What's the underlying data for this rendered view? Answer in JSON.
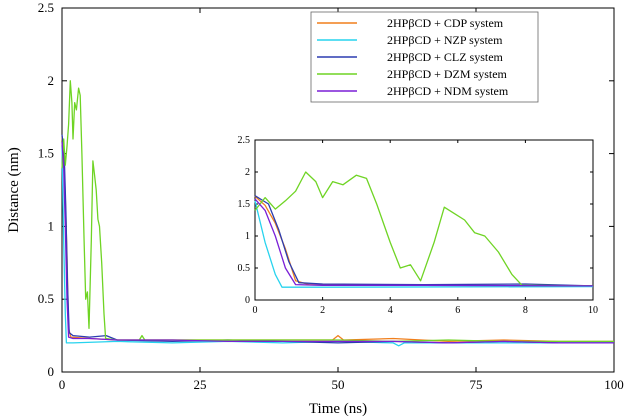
{
  "chart_data": {
    "type": "line",
    "title": "",
    "xlabel": "Time (ns)",
    "ylabel": "Distance (nm)",
    "xlim": [
      0,
      100
    ],
    "ylim": [
      0,
      2.5
    ],
    "xticks": [
      0,
      25,
      50,
      75,
      100
    ],
    "yticks": [
      0,
      0.5,
      1,
      1.5,
      2,
      2.5
    ],
    "ytick_labels": [
      "0",
      "0.5",
      "1",
      "1.5",
      "2",
      "2.5"
    ],
    "legend_position": "top-right",
    "series": [
      {
        "name": "2HPβCD + CDP system",
        "color": "#f07f1c",
        "points": [
          [
            0,
            1.62
          ],
          [
            0.3,
            1.48
          ],
          [
            0.6,
            1.2
          ],
          [
            0.9,
            0.8
          ],
          [
            1.2,
            0.3
          ],
          [
            1.6,
            0.24
          ],
          [
            5,
            0.23
          ],
          [
            10,
            0.22
          ],
          [
            20,
            0.22
          ],
          [
            30,
            0.22
          ],
          [
            40,
            0.22
          ],
          [
            49,
            0.22
          ],
          [
            50,
            0.25
          ],
          [
            51,
            0.22
          ],
          [
            60,
            0.23
          ],
          [
            70,
            0.21
          ],
          [
            80,
            0.22
          ],
          [
            90,
            0.21
          ],
          [
            100,
            0.21
          ]
        ]
      },
      {
        "name": "2HPβCD + NZP system",
        "color": "#27d3ee",
        "points": [
          [
            0,
            1.55
          ],
          [
            0.3,
            0.9
          ],
          [
            0.6,
            0.4
          ],
          [
            0.8,
            0.2
          ],
          [
            2,
            0.2
          ],
          [
            10,
            0.21
          ],
          [
            20,
            0.2
          ],
          [
            30,
            0.21
          ],
          [
            40,
            0.2
          ],
          [
            50,
            0.21
          ],
          [
            60,
            0.2
          ],
          [
            61,
            0.18
          ],
          [
            62,
            0.2
          ],
          [
            70,
            0.2
          ],
          [
            80,
            0.2
          ],
          [
            90,
            0.2
          ],
          [
            100,
            0.2
          ]
        ]
      },
      {
        "name": "2HPβCD + CLZ system",
        "color": "#2c3cb0",
        "points": [
          [
            0,
            1.63
          ],
          [
            0.4,
            1.5
          ],
          [
            0.7,
            1.1
          ],
          [
            1.0,
            0.6
          ],
          [
            1.3,
            0.27
          ],
          [
            2,
            0.25
          ],
          [
            5,
            0.24
          ],
          [
            8,
            0.25
          ],
          [
            10,
            0.22
          ],
          [
            20,
            0.21
          ],
          [
            30,
            0.22
          ],
          [
            40,
            0.21
          ],
          [
            50,
            0.2
          ],
          [
            60,
            0.21
          ],
          [
            70,
            0.2
          ],
          [
            80,
            0.21
          ],
          [
            90,
            0.2
          ],
          [
            100,
            0.2
          ]
        ]
      },
      {
        "name": "2HPβCD + DZM system",
        "color": "#6fd424",
        "points": [
          [
            0,
            1.4
          ],
          [
            0.3,
            1.6
          ],
          [
            0.6,
            1.42
          ],
          [
            0.9,
            1.55
          ],
          [
            1.2,
            1.7
          ],
          [
            1.5,
            2.0
          ],
          [
            1.8,
            1.85
          ],
          [
            2.0,
            1.6
          ],
          [
            2.3,
            1.85
          ],
          [
            2.6,
            1.8
          ],
          [
            3.0,
            1.95
          ],
          [
            3.3,
            1.9
          ],
          [
            3.6,
            1.5
          ],
          [
            4.0,
            0.9
          ],
          [
            4.3,
            0.5
          ],
          [
            4.6,
            0.55
          ],
          [
            4.9,
            0.3
          ],
          [
            5.3,
            0.9
          ],
          [
            5.6,
            1.45
          ],
          [
            5.9,
            1.35
          ],
          [
            6.2,
            1.25
          ],
          [
            6.5,
            1.05
          ],
          [
            6.8,
            1.0
          ],
          [
            7.2,
            0.75
          ],
          [
            7.6,
            0.4
          ],
          [
            7.9,
            0.23
          ],
          [
            10,
            0.22
          ],
          [
            14,
            0.22
          ],
          [
            14.5,
            0.25
          ],
          [
            15,
            0.22
          ],
          [
            20,
            0.22
          ],
          [
            30,
            0.22
          ],
          [
            40,
            0.22
          ],
          [
            50,
            0.22
          ],
          [
            60,
            0.21
          ],
          [
            70,
            0.22
          ],
          [
            80,
            0.21
          ],
          [
            90,
            0.21
          ],
          [
            100,
            0.21
          ]
        ]
      },
      {
        "name": "2HPβCD + NDM system",
        "color": "#7a1fd6",
        "points": [
          [
            0,
            1.58
          ],
          [
            0.3,
            1.4
          ],
          [
            0.6,
            1.0
          ],
          [
            0.9,
            0.5
          ],
          [
            1.2,
            0.24
          ],
          [
            2,
            0.23
          ],
          [
            5,
            0.23
          ],
          [
            10,
            0.22
          ],
          [
            20,
            0.22
          ],
          [
            30,
            0.21
          ],
          [
            40,
            0.21
          ],
          [
            50,
            0.21
          ],
          [
            60,
            0.21
          ],
          [
            70,
            0.2
          ],
          [
            80,
            0.21
          ],
          [
            90,
            0.2
          ],
          [
            100,
            0.2
          ]
        ]
      }
    ],
    "inset": {
      "xlim": [
        0,
        10
      ],
      "ylim": [
        0,
        2.5
      ],
      "xticks": [
        0,
        2,
        4,
        6,
        8,
        10
      ],
      "yticks": [
        0,
        0.5,
        1,
        1.5,
        2,
        2.5
      ],
      "ytick_labels": [
        "0",
        "0.5",
        "1",
        "1.5",
        "2",
        "2.5"
      ]
    }
  }
}
